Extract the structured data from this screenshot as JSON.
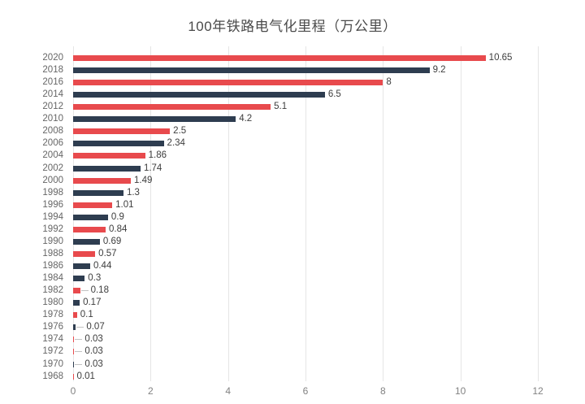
{
  "title": "100年铁路电气化里程（万公里）",
  "chart_data": {
    "type": "bar",
    "orientation": "horizontal",
    "title": "100年铁路电气化里程（万公里）",
    "xlabel": "",
    "ylabel": "",
    "xlim": [
      0,
      12
    ],
    "x_ticks": [
      "0",
      "2",
      "4",
      "6",
      "8",
      "10",
      "12"
    ],
    "grid": true,
    "legend": "none",
    "palette": {
      "red": "#e84a4d",
      "navy": "#2e3d50"
    },
    "rows": [
      {
        "year": "2020",
        "value": 10.65,
        "label": "10.65",
        "color": "red",
        "leader": false
      },
      {
        "year": "2018",
        "value": 9.2,
        "label": "9.2",
        "color": "navy",
        "leader": false
      },
      {
        "year": "2016",
        "value": 8,
        "label": "8",
        "color": "red",
        "leader": false
      },
      {
        "year": "2014",
        "value": 6.5,
        "label": "6.5",
        "color": "navy",
        "leader": false
      },
      {
        "year": "2012",
        "value": 5.1,
        "label": "5.1",
        "color": "red",
        "leader": false
      },
      {
        "year": "2010",
        "value": 4.2,
        "label": "4.2",
        "color": "navy",
        "leader": false
      },
      {
        "year": "2008",
        "value": 2.5,
        "label": "2.5",
        "color": "red",
        "leader": false
      },
      {
        "year": "2006",
        "value": 2.34,
        "label": "2.34",
        "color": "navy",
        "leader": false
      },
      {
        "year": "2004",
        "value": 1.86,
        "label": "1.86",
        "color": "red",
        "leader": false
      },
      {
        "year": "2002",
        "value": 1.74,
        "label": "1.74",
        "color": "navy",
        "leader": false
      },
      {
        "year": "2000",
        "value": 1.49,
        "label": "1.49",
        "color": "red",
        "leader": false
      },
      {
        "year": "1998",
        "value": 1.3,
        "label": "1.3",
        "color": "navy",
        "leader": false
      },
      {
        "year": "1996",
        "value": 1.01,
        "label": "1.01",
        "color": "red",
        "leader": false
      },
      {
        "year": "1994",
        "value": 0.9,
        "label": "0.9",
        "color": "navy",
        "leader": false
      },
      {
        "year": "1992",
        "value": 0.84,
        "label": "0.84",
        "color": "red",
        "leader": false
      },
      {
        "year": "1990",
        "value": 0.69,
        "label": "0.69",
        "color": "navy",
        "leader": false
      },
      {
        "year": "1988",
        "value": 0.57,
        "label": "0.57",
        "color": "red",
        "leader": false
      },
      {
        "year": "1986",
        "value": 0.44,
        "label": "0.44",
        "color": "navy",
        "leader": false
      },
      {
        "year": "1984",
        "value": 0.3,
        "label": "0.3",
        "color": "navy",
        "leader": false
      },
      {
        "year": "1982",
        "value": 0.18,
        "label": "0.18",
        "color": "red",
        "leader": true
      },
      {
        "year": "1980",
        "value": 0.17,
        "label": "0.17",
        "color": "navy",
        "leader": false
      },
      {
        "year": "1978",
        "value": 0.1,
        "label": "0.1",
        "color": "red",
        "leader": false
      },
      {
        "year": "1976",
        "value": 0.07,
        "label": "0.07",
        "color": "navy",
        "leader": true
      },
      {
        "year": "1974",
        "value": 0.03,
        "label": "0.03",
        "color": "red",
        "leader": true
      },
      {
        "year": "1972",
        "value": 0.03,
        "label": "0.03",
        "color": "red",
        "leader": true
      },
      {
        "year": "1970",
        "value": 0.03,
        "label": "0.03",
        "color": "navy",
        "leader": true
      },
      {
        "year": "1968",
        "value": 0.01,
        "label": "0.01",
        "color": "red",
        "leader": false
      }
    ]
  }
}
